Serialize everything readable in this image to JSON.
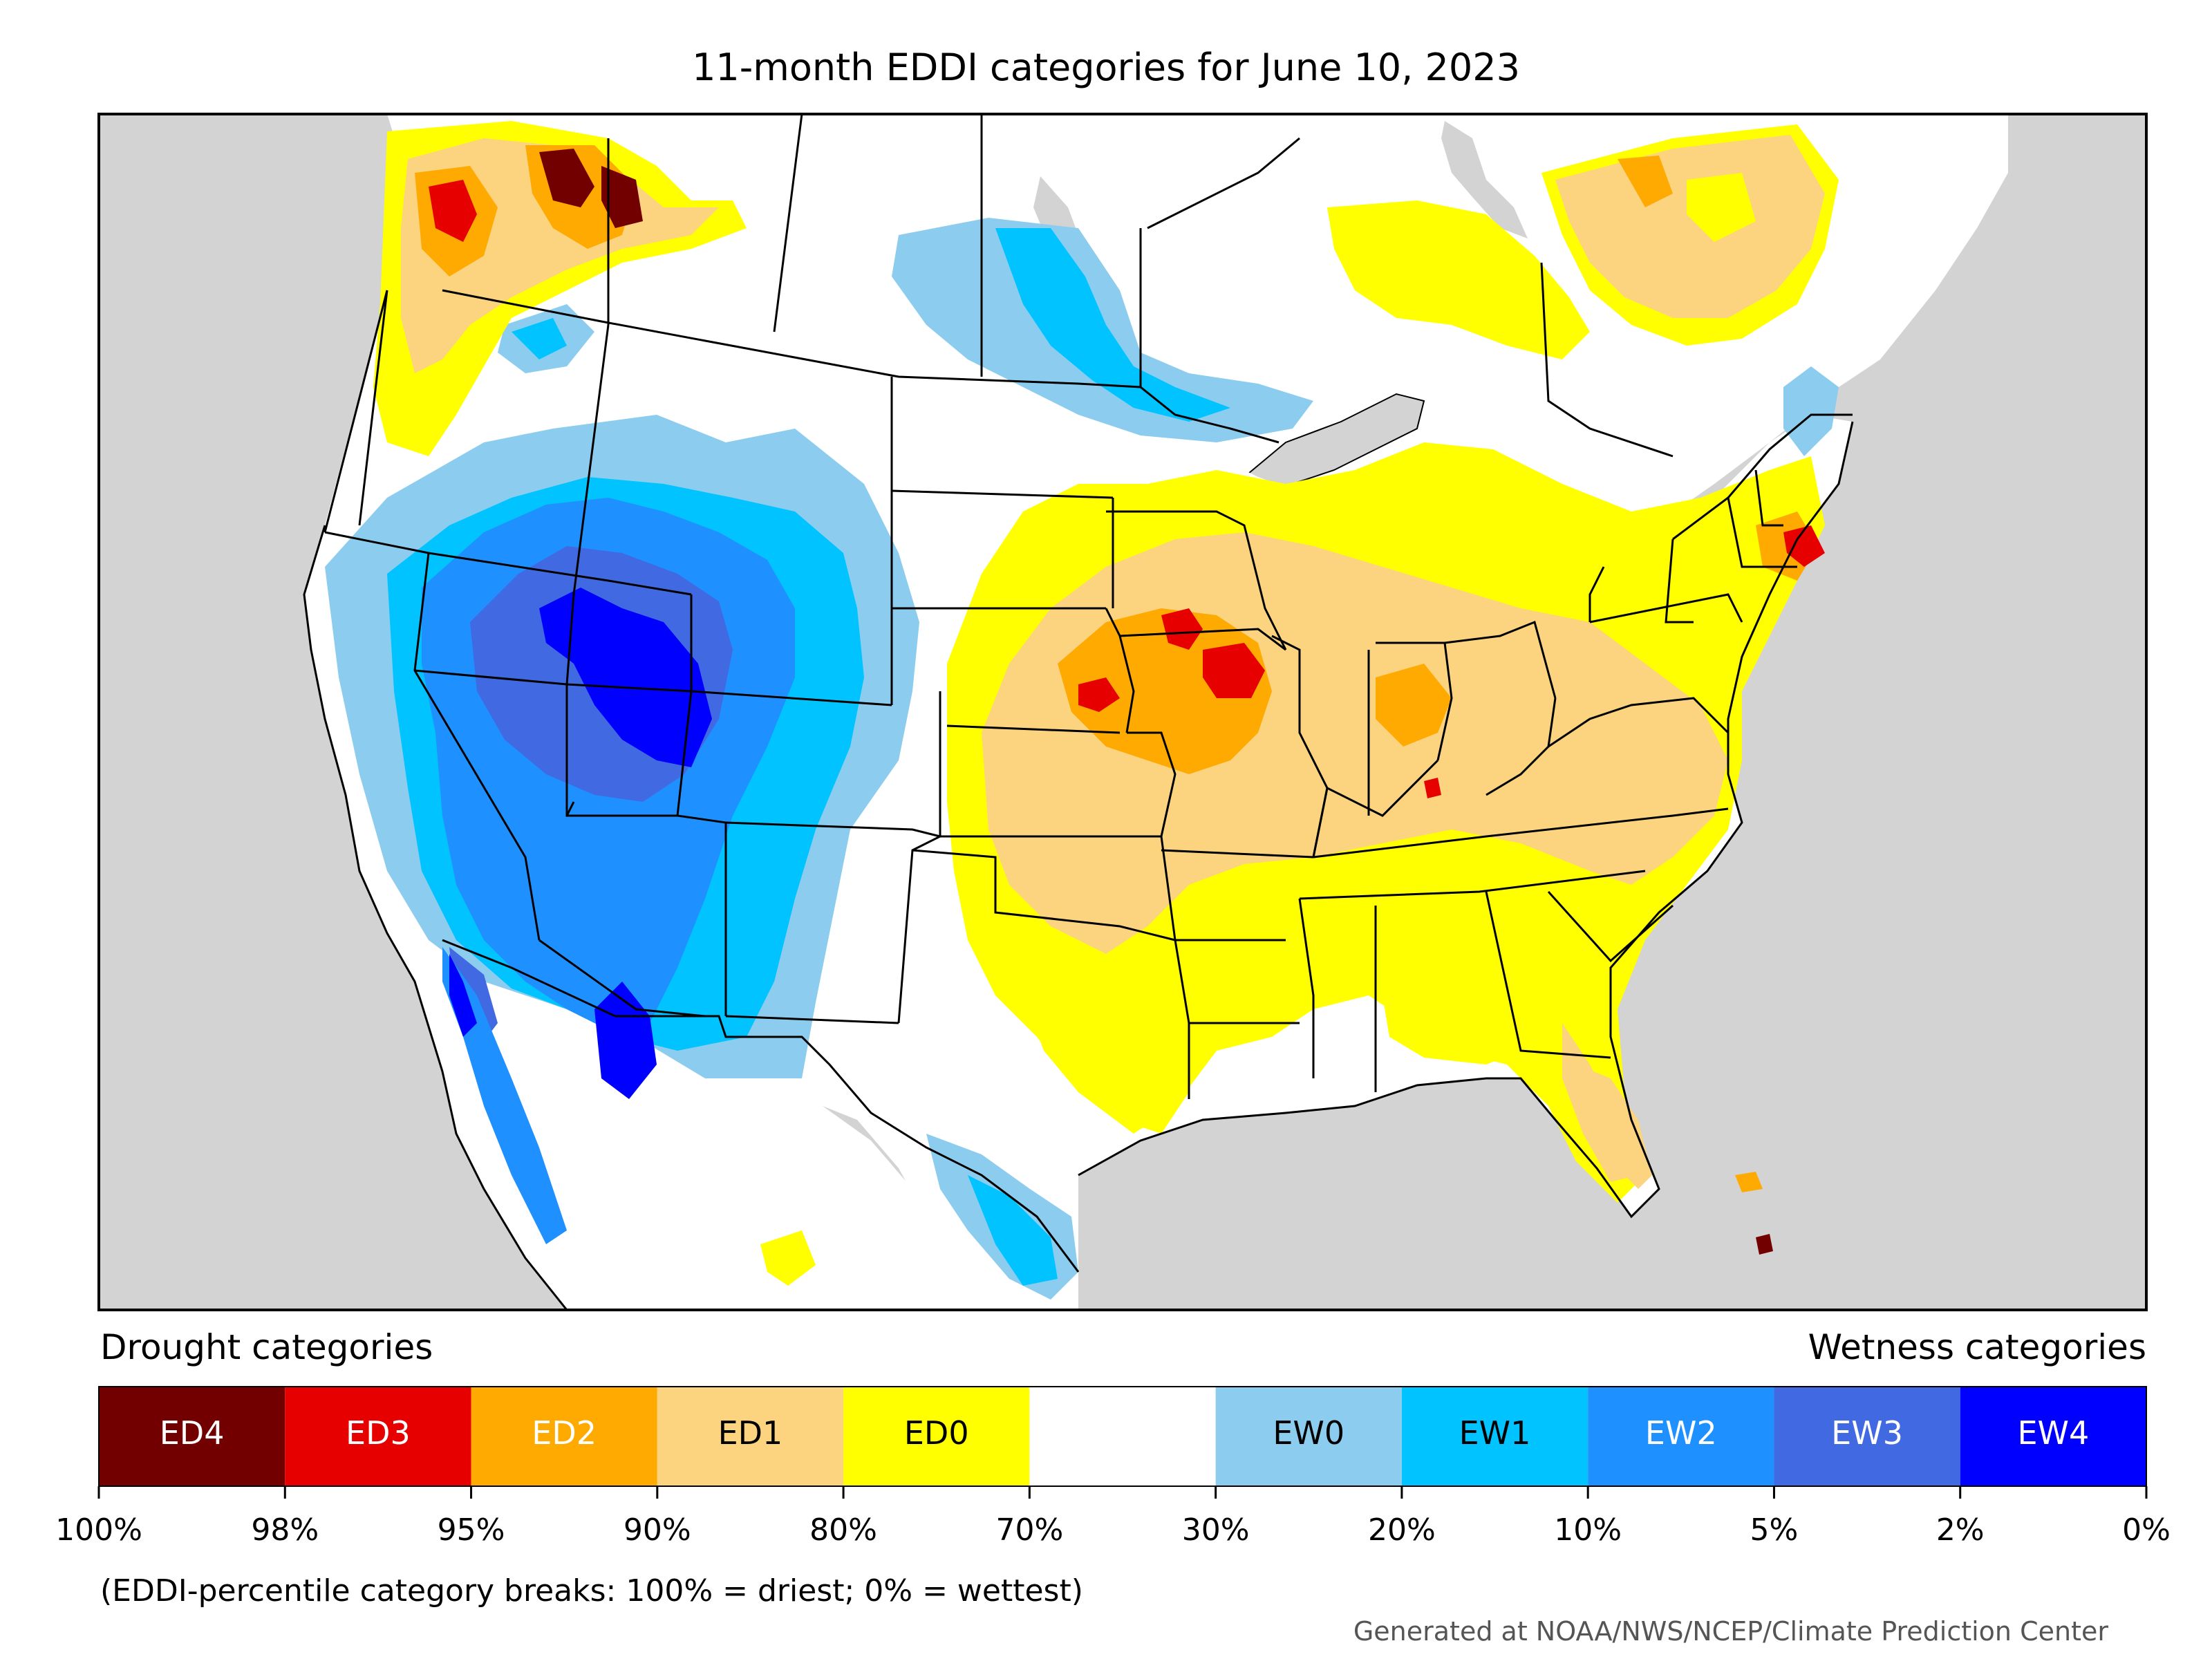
{
  "title": "11-month EDDI categories for June 10, 2023",
  "legend": {
    "drought_heading": "Drought categories",
    "wetness_heading": "Wetness categories",
    "categories": [
      {
        "label": "ED4",
        "color": "#730000",
        "text_color": "#ffffff"
      },
      {
        "label": "ED3",
        "color": "#e60000",
        "text_color": "#ffffff"
      },
      {
        "label": "ED2",
        "color": "#ffaa00",
        "text_color": "#ffffff"
      },
      {
        "label": "ED1",
        "color": "#fcd37f",
        "text_color": "#000000"
      },
      {
        "label": "ED0",
        "color": "#ffff00",
        "text_color": "#000000"
      },
      {
        "label": "",
        "color": "#ffffff",
        "text_color": "#000000"
      },
      {
        "label": "EW0",
        "color": "#8ccdef",
        "text_color": "#000000"
      },
      {
        "label": "EW1",
        "color": "#00c3ff",
        "text_color": "#000000"
      },
      {
        "label": "EW2",
        "color": "#1e90ff",
        "text_color": "#ffffff"
      },
      {
        "label": "EW3",
        "color": "#4169e1",
        "text_color": "#ffffff"
      },
      {
        "label": "EW4",
        "color": "#0000ff",
        "text_color": "#ffffff"
      }
    ],
    "ticks": [
      "100%",
      "98%",
      "95%",
      "90%",
      "80%",
      "70%",
      "30%",
      "20%",
      "10%",
      "5%",
      "2%",
      "0%"
    ]
  },
  "note": "(EDDI-percentile category breaks: 100% = driest; 0% = wettest)",
  "credit": "Generated at NOAA/NWS/NCEP/Climate Prediction Center",
  "colors": {
    "ocean": "#d3d3d3",
    "land": "#ffffff",
    "border": "#000000"
  }
}
